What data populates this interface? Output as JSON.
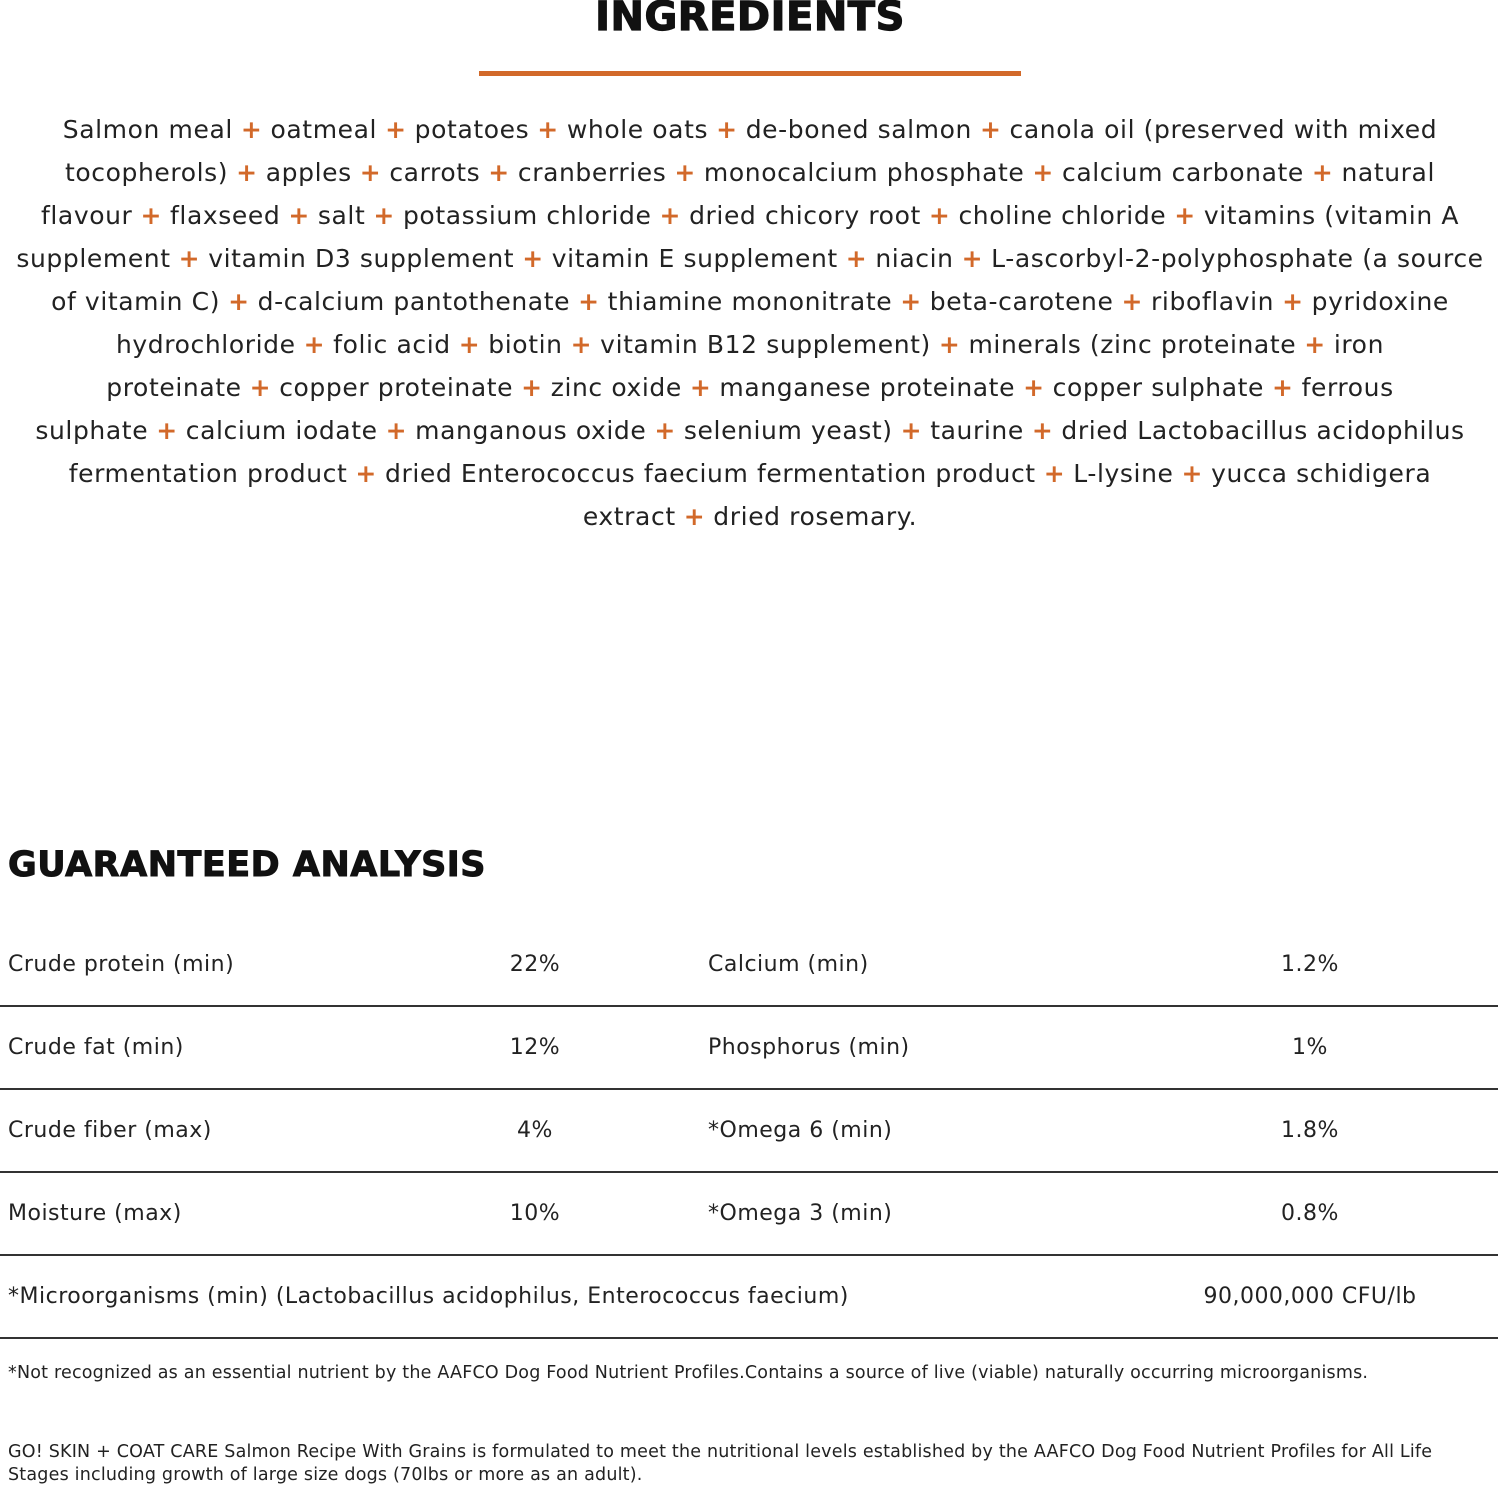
{
  "colors": {
    "accent": "#d2692a",
    "text": "#222222"
  },
  "ingredients": {
    "title": "INGREDIENTS",
    "separator": "+",
    "items": [
      "Salmon meal",
      "oatmeal",
      "potatoes",
      "whole oats",
      "de-boned salmon",
      "canola oil (preserved with mixed tocopherols)",
      "apples",
      "carrots",
      "cranberries",
      "monocalcium phosphate",
      "calcium carbonate",
      "natural flavour",
      "flaxseed",
      "salt",
      "potassium chloride",
      "dried chicory root",
      "choline chloride",
      "vitamins (vitamin A supplement",
      "vitamin D3 supplement",
      "vitamin E supplement",
      "niacin",
      "L-ascorbyl-2-polyphosphate (a source of vitamin C)",
      "d-calcium pantothenate",
      "thiamine mononitrate",
      "beta-carotene",
      "riboflavin",
      "pyridoxine hydrochloride",
      "folic acid",
      "biotin",
      "vitamin B12 supplement)",
      "minerals (zinc proteinate",
      "iron proteinate",
      "copper proteinate",
      "zinc oxide",
      "manganese proteinate",
      "copper sulphate",
      "ferrous sulphate",
      "calcium iodate",
      "manganous oxide",
      "selenium yeast)",
      "taurine",
      "dried Lactobacillus acidophilus fermentation product",
      "dried Enterococcus faecium fermentation product",
      "L-lysine",
      "yucca schidigera extract",
      "dried rosemary."
    ]
  },
  "analysis": {
    "title": "GUARANTEED ANALYSIS",
    "rows": [
      {
        "label1": "Crude protein (min)",
        "value1": "22%",
        "label2": "Calcium (min)",
        "value2": "1.2%"
      },
      {
        "label1": "Crude fat (min)",
        "value1": "12%",
        "label2": "Phosphorus (min)",
        "value2": "1%"
      },
      {
        "label1": "Crude fiber (max)",
        "value1": "4%",
        "label2": "*Omega 6 (min)",
        "value2": "1.8%"
      },
      {
        "label1": "Moisture (max)",
        "value1": "10%",
        "label2": "*Omega 3 (min)",
        "value2": "0.8%"
      }
    ],
    "micro": {
      "label": "*Microorganisms (min) (Lactobacillus acidophilus, Enterococcus faecium)",
      "value": "90,000,000 CFU/lb"
    }
  },
  "footnote": "*Not recognized as an essential nutrient by the AAFCO Dog Food Nutrient Profiles.Contains a source of live (viable) naturally occurring microorganisms.",
  "statement": "GO! SKIN + COAT CARE Salmon Recipe With Grains is formulated to meet the nutritional levels established by the AAFCO Dog Food Nutrient Profiles for All Life Stages including growth of large size dogs (70lbs or more as an adult)."
}
